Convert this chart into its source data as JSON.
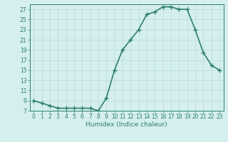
{
  "xlabel": "Humidex (Indice chaleur)",
  "ylabel": "",
  "x": [
    0,
    1,
    2,
    3,
    4,
    5,
    6,
    7,
    8,
    9,
    10,
    11,
    12,
    13,
    14,
    15,
    16,
    17,
    18,
    19,
    20,
    21,
    22,
    23
  ],
  "y": [
    9,
    8.5,
    8,
    7.5,
    7.5,
    7.5,
    7.5,
    7.5,
    7,
    9.5,
    15,
    19,
    21,
    23,
    26,
    26.5,
    27.5,
    27.5,
    27,
    27,
    23,
    18.5,
    16,
    15
  ],
  "ylim": [
    7,
    28
  ],
  "xlim": [
    -0.5,
    23.5
  ],
  "yticks": [
    7,
    9,
    11,
    13,
    15,
    17,
    19,
    21,
    23,
    25,
    27
  ],
  "xticks": [
    0,
    1,
    2,
    3,
    4,
    5,
    6,
    7,
    8,
    9,
    10,
    11,
    12,
    13,
    14,
    15,
    16,
    17,
    18,
    19,
    20,
    21,
    22,
    23
  ],
  "line_color": "#2e7f6e",
  "marker_color": "#2e7f6e",
  "bg_color": "#d4efee",
  "grid_color": "#b8dbd9",
  "axis_color": "#2e7f6e",
  "text_color": "#2e7f6e",
  "marker": "+",
  "linewidth": 1.2,
  "markersize": 4,
  "tick_fontsize": 5.5,
  "xlabel_fontsize": 6.5
}
